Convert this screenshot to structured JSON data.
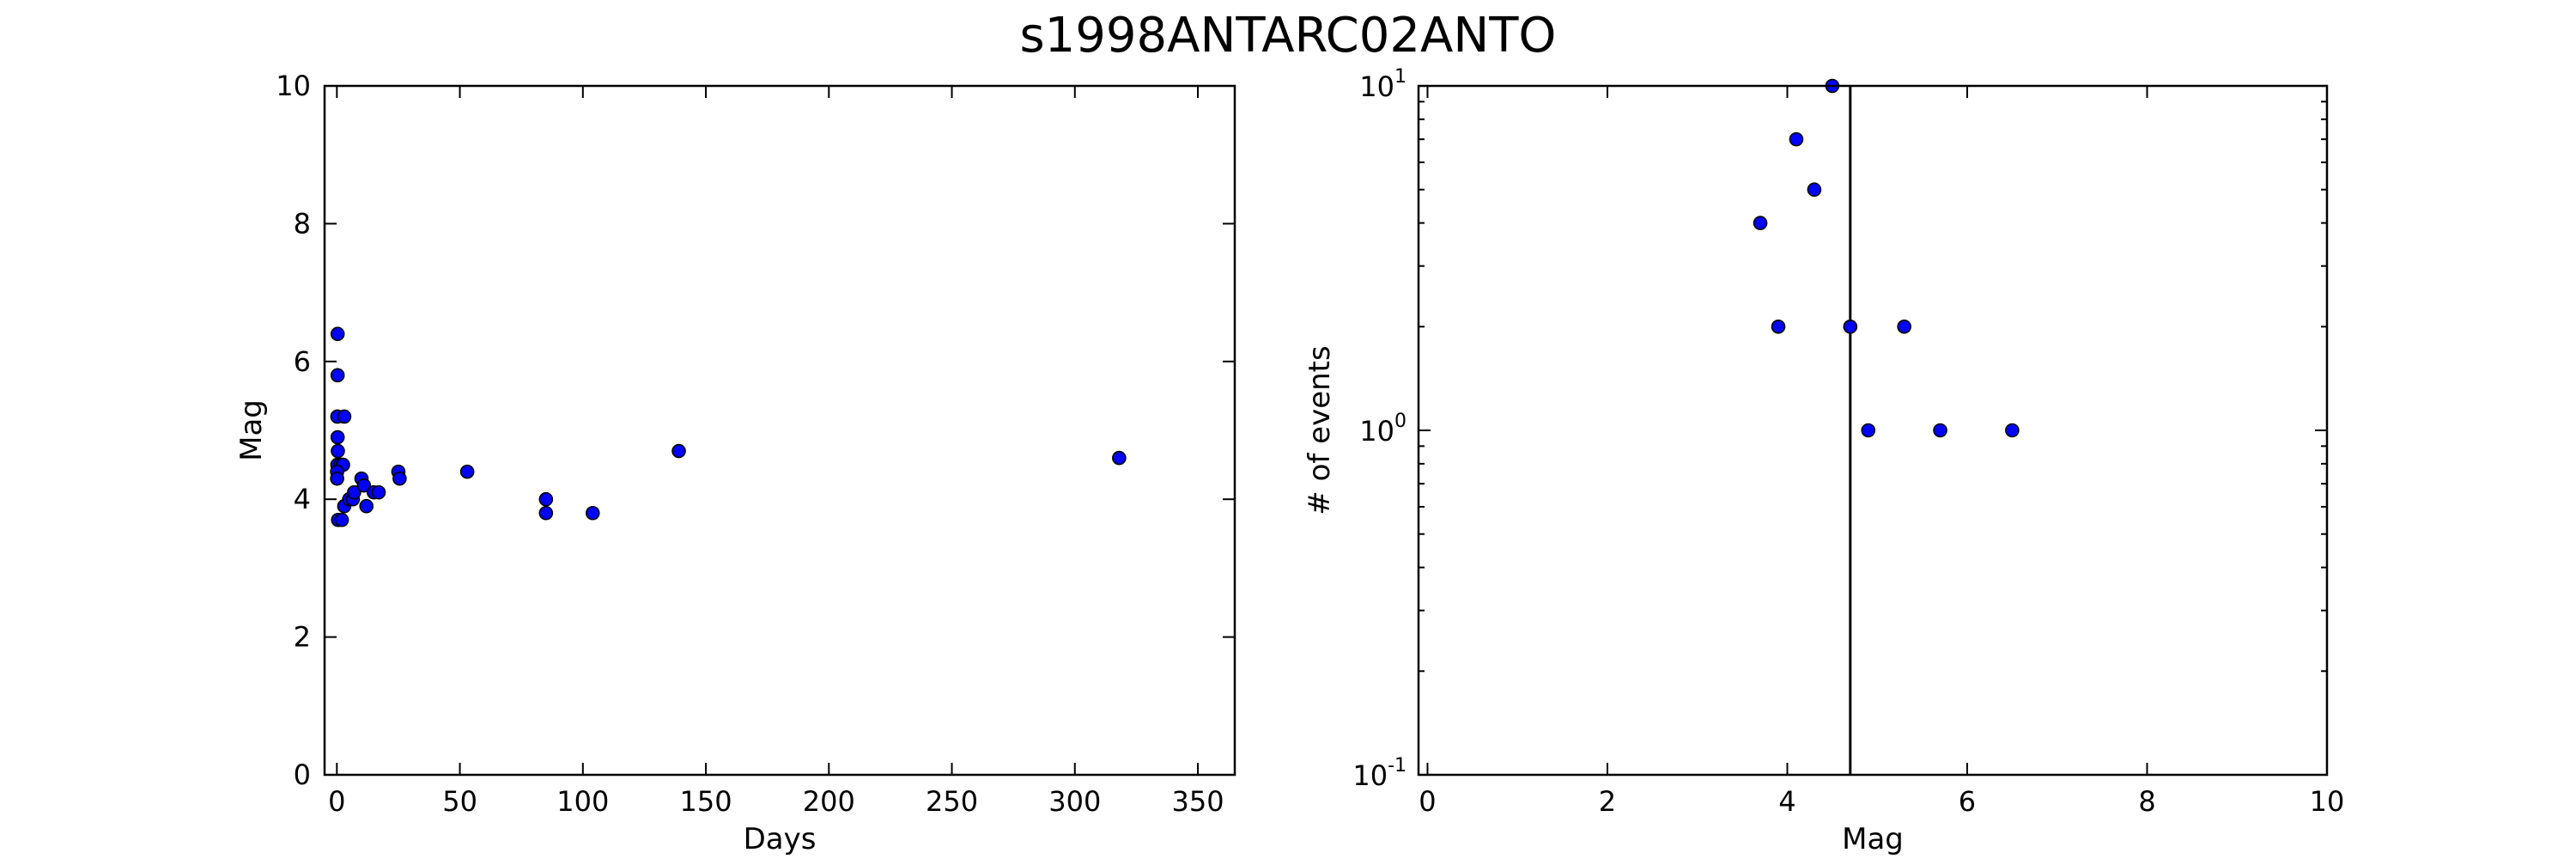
{
  "chart_data": [
    {
      "type": "scatter",
      "title": "s1998ANTARC02ANTO",
      "xlabel": "Days",
      "ylabel": "Mag",
      "xlim": [
        -5,
        365
      ],
      "ylim": [
        0,
        10
      ],
      "x_ticks": [
        0,
        50,
        100,
        150,
        200,
        250,
        300,
        350
      ],
      "y_ticks": [
        0,
        2,
        4,
        6,
        8,
        10
      ],
      "grid": false,
      "marker_color": "#0000ff",
      "points": [
        {
          "x": 0.3,
          "y": 6.4
        },
        {
          "x": 0.3,
          "y": 5.8
        },
        {
          "x": 0.2,
          "y": 5.2
        },
        {
          "x": 3.0,
          "y": 5.2
        },
        {
          "x": 0.3,
          "y": 4.9
        },
        {
          "x": 0.4,
          "y": 4.7
        },
        {
          "x": 0.2,
          "y": 4.5
        },
        {
          "x": 1.5,
          "y": 4.5
        },
        {
          "x": 2.5,
          "y": 4.5
        },
        {
          "x": 0.1,
          "y": 4.4
        },
        {
          "x": 0.1,
          "y": 4.3
        },
        {
          "x": 0.5,
          "y": 3.7
        },
        {
          "x": 2.0,
          "y": 3.7
        },
        {
          "x": 3.0,
          "y": 3.9
        },
        {
          "x": 5.0,
          "y": 4.0
        },
        {
          "x": 6.5,
          "y": 4.0
        },
        {
          "x": 7.0,
          "y": 4.1
        },
        {
          "x": 10.0,
          "y": 4.3
        },
        {
          "x": 11.0,
          "y": 4.2
        },
        {
          "x": 12.0,
          "y": 3.9
        },
        {
          "x": 15.0,
          "y": 4.1
        },
        {
          "x": 17.0,
          "y": 4.1
        },
        {
          "x": 25.0,
          "y": 4.4
        },
        {
          "x": 25.5,
          "y": 4.3
        },
        {
          "x": 53.0,
          "y": 4.4
        },
        {
          "x": 85.0,
          "y": 4.0
        },
        {
          "x": 85.0,
          "y": 3.8
        },
        {
          "x": 104.0,
          "y": 3.8
        },
        {
          "x": 139.0,
          "y": 4.7
        },
        {
          "x": 318.0,
          "y": 4.6
        }
      ]
    },
    {
      "type": "scatter",
      "xlabel": "Mag",
      "ylabel": "# of events",
      "xlim": [
        -0.1,
        10
      ],
      "ylim": [
        0.1,
        10
      ],
      "yscale": "log",
      "x_ticks": [
        0,
        2,
        4,
        6,
        8,
        10
      ],
      "y_ticks": [
        {
          "value": 0.1,
          "base": "10",
          "exp": "-1"
        },
        {
          "value": 1,
          "base": "10",
          "exp": "0"
        },
        {
          "value": 10,
          "base": "10",
          "exp": "1"
        }
      ],
      "grid": false,
      "marker_color": "#0000ff",
      "vline_x": 4.7,
      "points": [
        {
          "x": 3.7,
          "y": 4
        },
        {
          "x": 3.9,
          "y": 2
        },
        {
          "x": 4.1,
          "y": 7
        },
        {
          "x": 4.3,
          "y": 5
        },
        {
          "x": 4.5,
          "y": 10
        },
        {
          "x": 4.7,
          "y": 2
        },
        {
          "x": 4.9,
          "y": 1
        },
        {
          "x": 5.3,
          "y": 2
        },
        {
          "x": 5.7,
          "y": 1
        },
        {
          "x": 6.5,
          "y": 1
        }
      ]
    }
  ]
}
